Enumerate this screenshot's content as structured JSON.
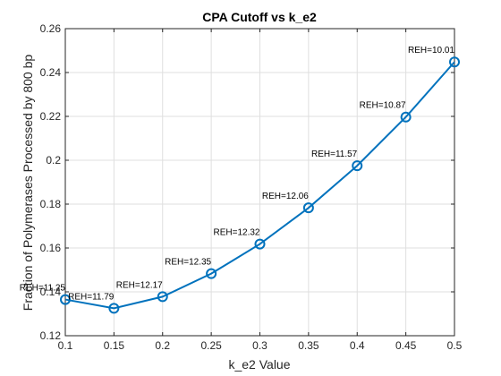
{
  "chart_data": {
    "type": "line",
    "title": "CPA Cutoff vs k_e2",
    "xlabel": "k_e2 Value",
    "ylabel": "Fraction of Polymerases Processed by 800 bp",
    "xlim": [
      0.1,
      0.5
    ],
    "ylim": [
      0.12,
      0.26
    ],
    "xticks": [
      "0.1",
      "0.15",
      "0.2",
      "0.25",
      "0.3",
      "0.35",
      "0.4",
      "0.45",
      "0.5"
    ],
    "yticks": [
      "0.12",
      "0.14",
      "0.16",
      "0.18",
      "0.2",
      "0.22",
      "0.24",
      "0.26"
    ],
    "grid": true,
    "series": [
      {
        "x": [
          0.1,
          0.15,
          0.2,
          0.25,
          0.3,
          0.35,
          0.4,
          0.45,
          0.5
        ],
        "y": [
          0.1365,
          0.1325,
          0.1378,
          0.1483,
          0.1618,
          0.1783,
          0.1975,
          0.2197,
          0.2448
        ],
        "labels": [
          "REH=11.25",
          "REH=11.79",
          "REH=12.17",
          "REH=12.35",
          "REH=12.32",
          "REH=12.06",
          "REH=11.57",
          "REH=10.87",
          "REH=10.01"
        ]
      }
    ],
    "line_color": "#0072bd"
  }
}
